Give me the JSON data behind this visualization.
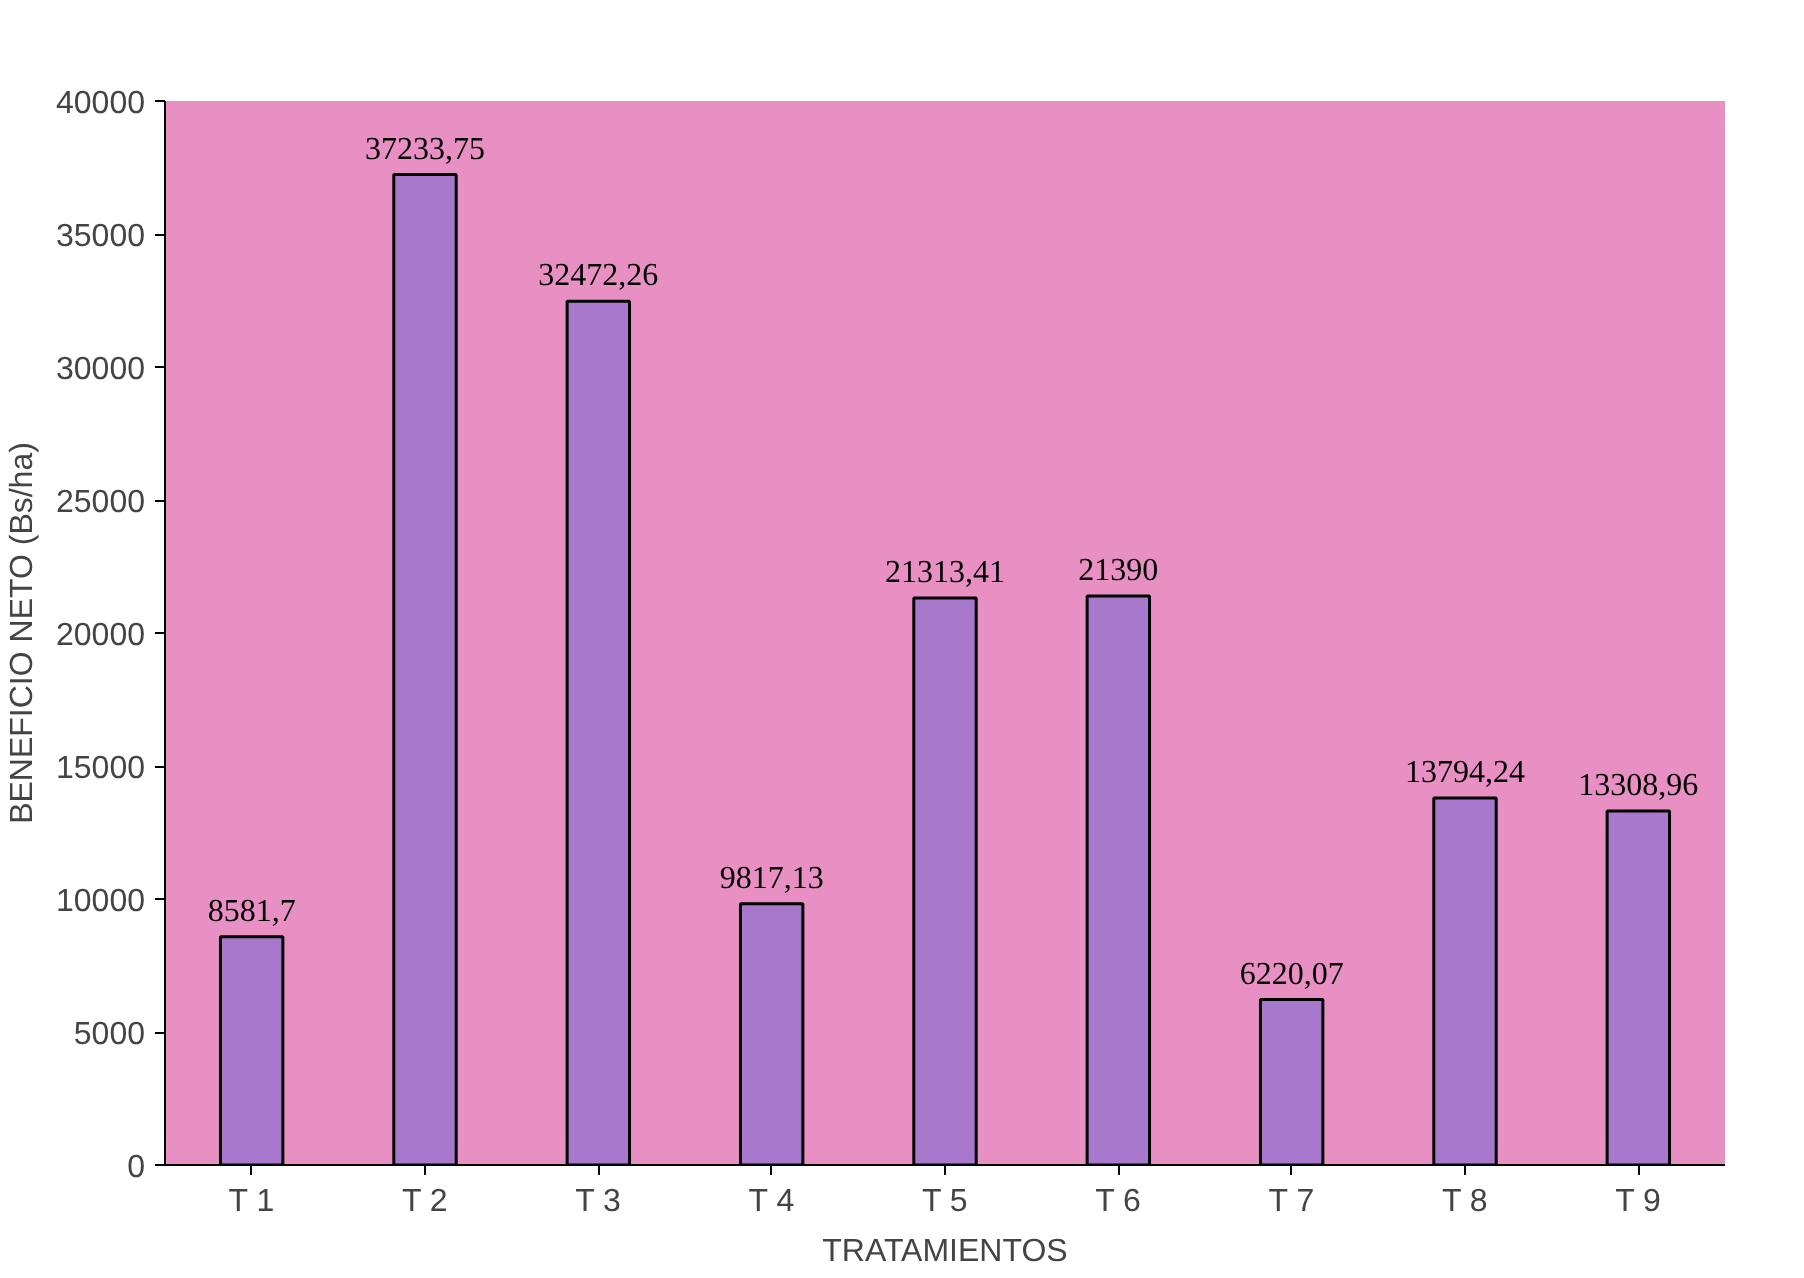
{
  "chart_data": {
    "type": "bar",
    "xlabel": "TRATAMIENTOS",
    "ylabel": "BENEFICIO NETO (Bs/ha)",
    "categories": [
      "T 1",
      "T 2",
      "T 3",
      "T 4",
      "T 5",
      "T 6",
      "T 7",
      "T 8",
      "T 9"
    ],
    "values": [
      8581.7,
      37233.75,
      32472.26,
      9817.13,
      21313.41,
      21390,
      6220.07,
      13794.24,
      13308.96
    ],
    "value_labels": [
      "8581,7",
      "37233,75",
      "32472,26",
      "9817,13",
      "21313,41",
      "21390",
      "6220,07",
      "13794,24",
      "13308,96"
    ],
    "color": "#a878cc",
    "ylim": [
      0,
      40000
    ],
    "yticks": [
      0,
      5000,
      10000,
      15000,
      20000,
      25000,
      30000,
      35000,
      40000
    ],
    "grid": false
  }
}
